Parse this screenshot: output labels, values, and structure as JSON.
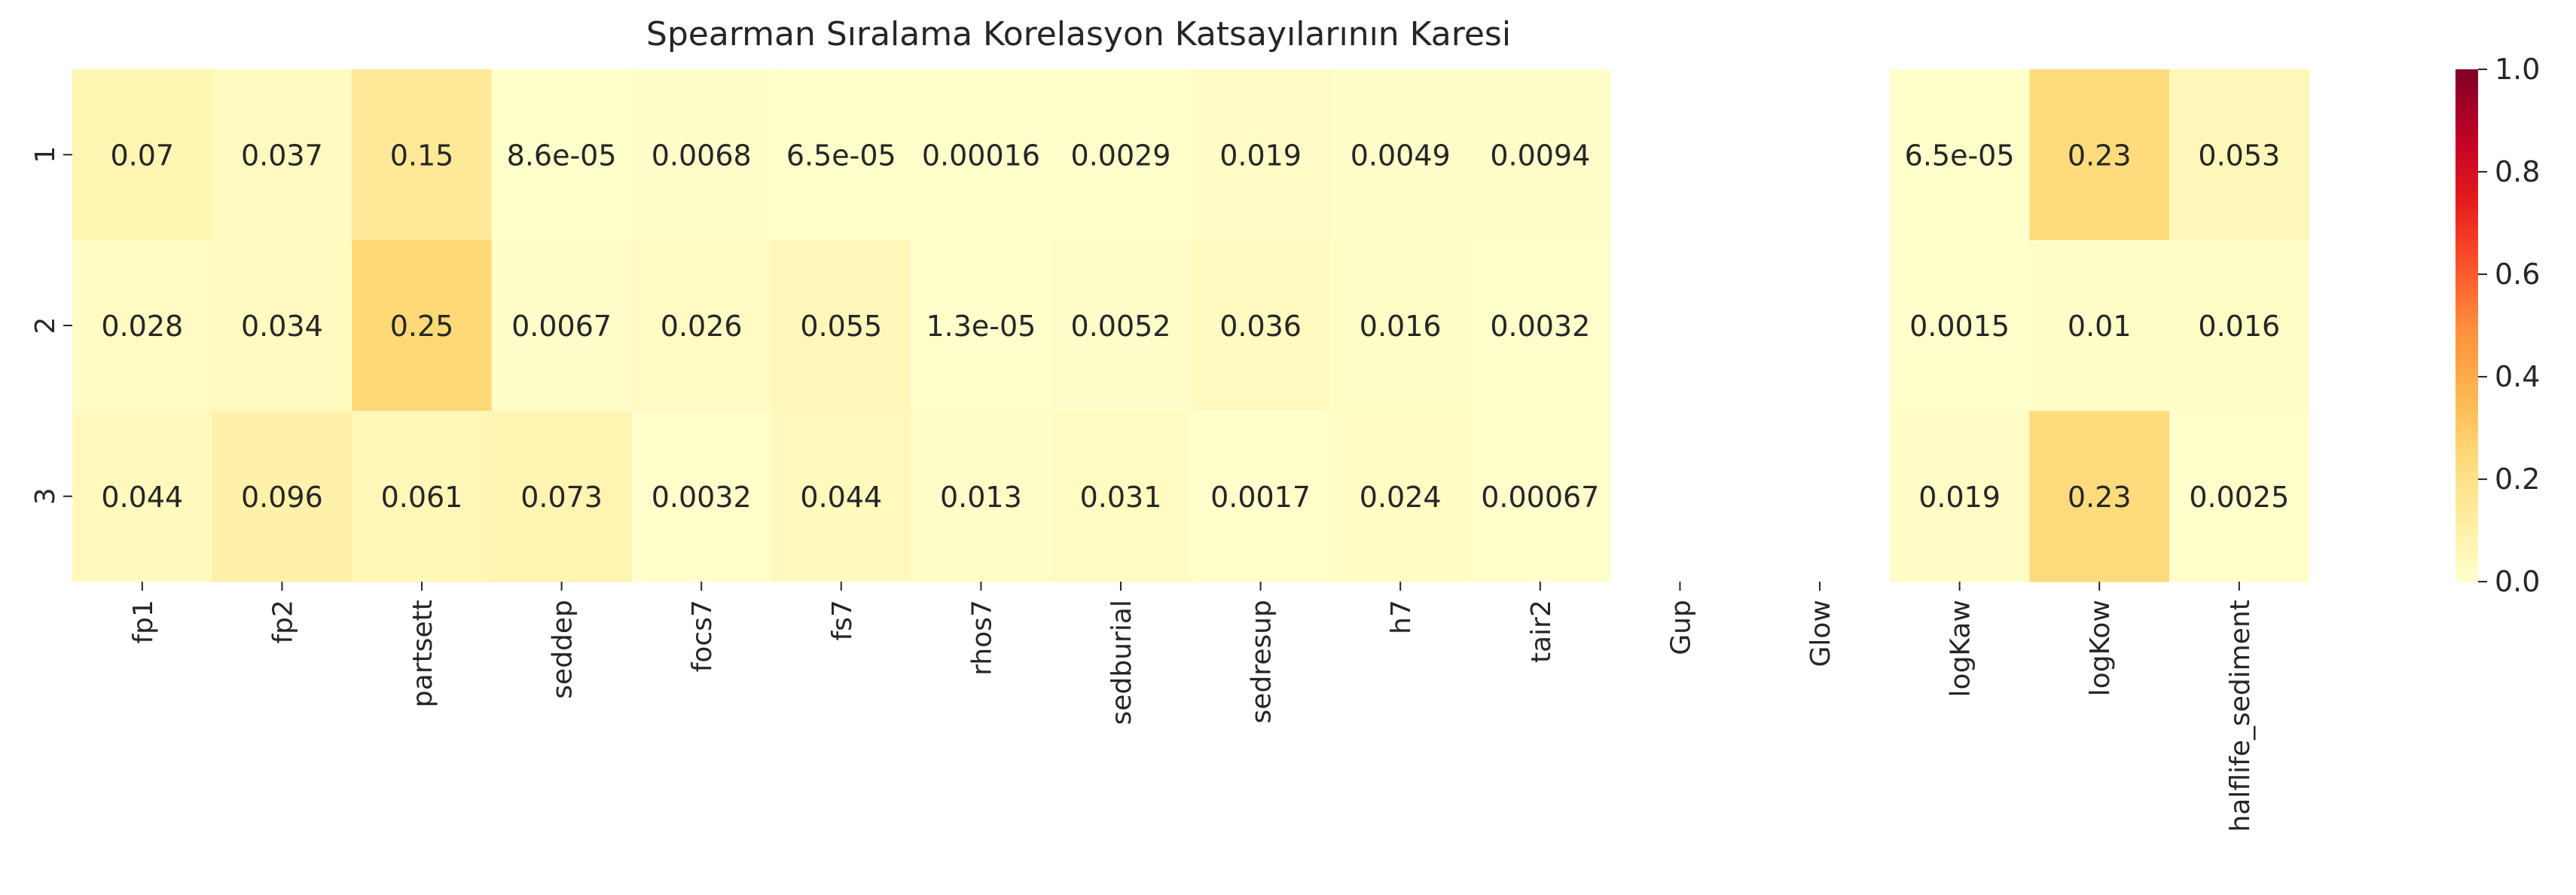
{
  "chart_data": {
    "type": "heatmap",
    "title": "Spearman Sıralama Korelasyon Katsayılarının Karesi",
    "xlabel": "",
    "ylabel": "",
    "x_categories": [
      "fp1",
      "fp2",
      "partsett",
      "seddep",
      "focs7",
      "fs7",
      "rhos7",
      "sedburial",
      "sedresup",
      "h7",
      "tair2",
      "Gup",
      "Glow",
      "logKaw",
      "logKow",
      "halflife_sediment"
    ],
    "y_categories": [
      "1",
      "2",
      "3"
    ],
    "values": [
      [
        0.07,
        0.037,
        0.15,
        8.6e-05,
        0.0068,
        6.5e-05,
        0.00016,
        0.0029,
        0.019,
        0.0049,
        0.0094,
        null,
        null,
        6.5e-05,
        0.23,
        0.053
      ],
      [
        0.028,
        0.034,
        0.25,
        0.0067,
        0.026,
        0.055,
        1.3e-05,
        0.0052,
        0.036,
        0.016,
        0.0032,
        null,
        null,
        0.0015,
        0.01,
        0.016
      ],
      [
        0.044,
        0.096,
        0.061,
        0.073,
        0.0032,
        0.044,
        0.013,
        0.031,
        0.0017,
        0.024,
        0.00067,
        null,
        null,
        0.019,
        0.23,
        0.0025
      ]
    ],
    "cell_labels": [
      [
        "0.07",
        "0.037",
        "0.15",
        "8.6e-05",
        "0.0068",
        "6.5e-05",
        "0.00016",
        "0.0029",
        "0.019",
        "0.0049",
        "0.0094",
        "",
        "",
        "6.5e-05",
        "0.23",
        "0.053"
      ],
      [
        "0.028",
        "0.034",
        "0.25",
        "0.0067",
        "0.026",
        "0.055",
        "1.3e-05",
        "0.0052",
        "0.036",
        "0.016",
        "0.0032",
        "",
        "",
        "0.0015",
        "0.01",
        "0.016"
      ],
      [
        "0.044",
        "0.096",
        "0.061",
        "0.073",
        "0.0032",
        "0.044",
        "0.013",
        "0.031",
        "0.0017",
        "0.024",
        "0.00067",
        "",
        "",
        "0.019",
        "0.23",
        "0.0025"
      ]
    ],
    "colormap": "YlOrRd",
    "vmin": 0.0,
    "vmax": 1.0,
    "colorbar_ticks": [
      "0.0",
      "0.2",
      "0.4",
      "0.6",
      "0.8",
      "1.0"
    ],
    "legend_placement": "right",
    "grid": false
  }
}
